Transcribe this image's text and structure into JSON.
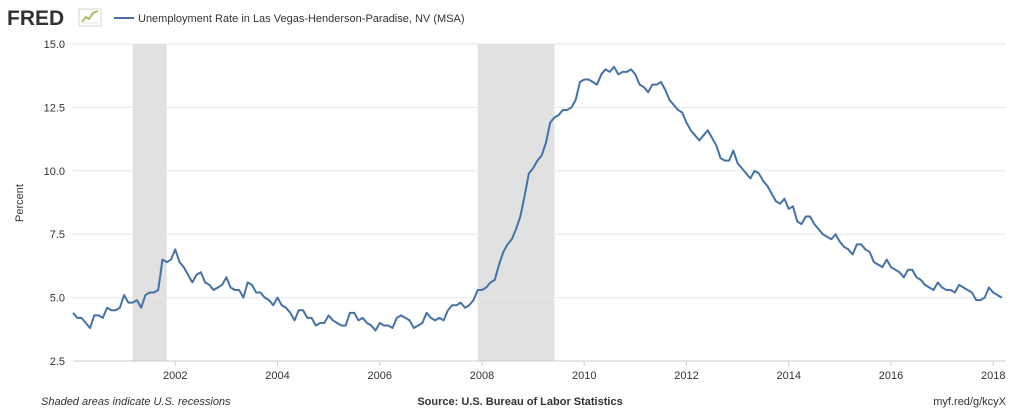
{
  "brand": {
    "logo": "FRED",
    "icon": "line-chart-icon"
  },
  "footer": {
    "note": "Shaded areas indicate U.S. recessions",
    "source": "Source: U.S. Bureau of Labor Statistics",
    "link": "myf.red/g/kcyX"
  },
  "colors": {
    "line": "#4572a7",
    "recession": "#e1e1e1",
    "grid": "#e6e6e6",
    "logo_accent": "#9bbf5e"
  },
  "chart_data": {
    "type": "line",
    "title": "",
    "xlabel": "",
    "ylabel": "Percent",
    "xlim": [
      "2000-01",
      "2018-04"
    ],
    "ylim": [
      2.5,
      15.0
    ],
    "y_ticks": [
      "2.5",
      "5.0",
      "7.5",
      "10.0",
      "12.5",
      "15.0"
    ],
    "x_ticks": [
      "2002",
      "2004",
      "2006",
      "2008",
      "2010",
      "2012",
      "2014",
      "2016",
      "2018"
    ],
    "grid": true,
    "legend_position": "top-left",
    "recessions": [
      [
        "2001-03",
        "2001-11"
      ],
      [
        "2007-12",
        "2009-06"
      ]
    ],
    "series": [
      {
        "name": "Unemployment Rate in Las Vegas-Henderson-Paradise, NV (MSA)",
        "points": [
          [
            "2000-01",
            4.4
          ],
          [
            "2000-02",
            4.2
          ],
          [
            "2000-03",
            4.2
          ],
          [
            "2000-04",
            4.0
          ],
          [
            "2000-05",
            3.8
          ],
          [
            "2000-06",
            4.3
          ],
          [
            "2000-07",
            4.3
          ],
          [
            "2000-08",
            4.2
          ],
          [
            "2000-09",
            4.6
          ],
          [
            "2000-10",
            4.5
          ],
          [
            "2000-11",
            4.5
          ],
          [
            "2000-12",
            4.6
          ],
          [
            "2001-01",
            5.1
          ],
          [
            "2001-02",
            4.8
          ],
          [
            "2001-03",
            4.8
          ],
          [
            "2001-04",
            4.9
          ],
          [
            "2001-05",
            4.6
          ],
          [
            "2001-06",
            5.1
          ],
          [
            "2001-07",
            5.2
          ],
          [
            "2001-08",
            5.2
          ],
          [
            "2001-09",
            5.3
          ],
          [
            "2001-10",
            6.5
          ],
          [
            "2001-11",
            6.4
          ],
          [
            "2001-12",
            6.5
          ],
          [
            "2002-01",
            6.9
          ],
          [
            "2002-02",
            6.4
          ],
          [
            "2002-03",
            6.2
          ],
          [
            "2002-04",
            5.9
          ],
          [
            "2002-05",
            5.6
          ],
          [
            "2002-06",
            5.9
          ],
          [
            "2002-07",
            6.0
          ],
          [
            "2002-08",
            5.6
          ],
          [
            "2002-09",
            5.5
          ],
          [
            "2002-10",
            5.3
          ],
          [
            "2002-11",
            5.4
          ],
          [
            "2002-12",
            5.5
          ],
          [
            "2003-01",
            5.8
          ],
          [
            "2003-02",
            5.4
          ],
          [
            "2003-03",
            5.3
          ],
          [
            "2003-04",
            5.3
          ],
          [
            "2003-05",
            5.0
          ],
          [
            "2003-06",
            5.6
          ],
          [
            "2003-07",
            5.5
          ],
          [
            "2003-08",
            5.2
          ],
          [
            "2003-09",
            5.2
          ],
          [
            "2003-10",
            5.0
          ],
          [
            "2003-11",
            4.9
          ],
          [
            "2003-12",
            4.7
          ],
          [
            "2004-01",
            5.0
          ],
          [
            "2004-02",
            4.7
          ],
          [
            "2004-03",
            4.6
          ],
          [
            "2004-04",
            4.4
          ],
          [
            "2004-05",
            4.1
          ],
          [
            "2004-06",
            4.5
          ],
          [
            "2004-07",
            4.5
          ],
          [
            "2004-08",
            4.2
          ],
          [
            "2004-09",
            4.2
          ],
          [
            "2004-10",
            3.9
          ],
          [
            "2004-11",
            4.0
          ],
          [
            "2004-12",
            4.0
          ],
          [
            "2005-01",
            4.3
          ],
          [
            "2005-02",
            4.1
          ],
          [
            "2005-03",
            4.0
          ],
          [
            "2005-04",
            3.9
          ],
          [
            "2005-05",
            3.9
          ],
          [
            "2005-06",
            4.4
          ],
          [
            "2005-07",
            4.4
          ],
          [
            "2005-08",
            4.1
          ],
          [
            "2005-09",
            4.2
          ],
          [
            "2005-10",
            4.0
          ],
          [
            "2005-11",
            3.9
          ],
          [
            "2005-12",
            3.7
          ],
          [
            "2006-01",
            4.0
          ],
          [
            "2006-02",
            3.9
          ],
          [
            "2006-03",
            3.9
          ],
          [
            "2006-04",
            3.8
          ],
          [
            "2006-05",
            4.2
          ],
          [
            "2006-06",
            4.3
          ],
          [
            "2006-07",
            4.2
          ],
          [
            "2006-08",
            4.1
          ],
          [
            "2006-09",
            3.8
          ],
          [
            "2006-10",
            3.9
          ],
          [
            "2006-11",
            4.0
          ],
          [
            "2006-12",
            4.4
          ],
          [
            "2007-01",
            4.2
          ],
          [
            "2007-02",
            4.1
          ],
          [
            "2007-03",
            4.2
          ],
          [
            "2007-04",
            4.1
          ],
          [
            "2007-05",
            4.5
          ],
          [
            "2007-06",
            4.7
          ],
          [
            "2007-07",
            4.7
          ],
          [
            "2007-08",
            4.8
          ],
          [
            "2007-09",
            4.6
          ],
          [
            "2007-10",
            4.7
          ],
          [
            "2007-11",
            4.9
          ],
          [
            "2007-12",
            5.3
          ],
          [
            "2008-01",
            5.3
          ],
          [
            "2008-02",
            5.4
          ],
          [
            "2008-03",
            5.6
          ],
          [
            "2008-04",
            5.7
          ],
          [
            "2008-05",
            6.3
          ],
          [
            "2008-06",
            6.8
          ],
          [
            "2008-07",
            7.1
          ],
          [
            "2008-08",
            7.3
          ],
          [
            "2008-09",
            7.7
          ],
          [
            "2008-10",
            8.2
          ],
          [
            "2008-11",
            9.0
          ],
          [
            "2008-12",
            9.9
          ],
          [
            "2009-01",
            10.1
          ],
          [
            "2009-02",
            10.4
          ],
          [
            "2009-03",
            10.6
          ],
          [
            "2009-04",
            11.1
          ],
          [
            "2009-05",
            11.9
          ],
          [
            "2009-06",
            12.1
          ],
          [
            "2009-07",
            12.2
          ],
          [
            "2009-08",
            12.4
          ],
          [
            "2009-09",
            12.4
          ],
          [
            "2009-10",
            12.5
          ],
          [
            "2009-11",
            12.8
          ],
          [
            "2009-12",
            13.5
          ],
          [
            "2010-01",
            13.6
          ],
          [
            "2010-02",
            13.6
          ],
          [
            "2010-03",
            13.5
          ],
          [
            "2010-04",
            13.4
          ],
          [
            "2010-05",
            13.8
          ],
          [
            "2010-06",
            14.0
          ],
          [
            "2010-07",
            13.9
          ],
          [
            "2010-08",
            14.1
          ],
          [
            "2010-09",
            13.8
          ],
          [
            "2010-10",
            13.9
          ],
          [
            "2010-11",
            13.9
          ],
          [
            "2010-12",
            14.0
          ],
          [
            "2011-01",
            13.8
          ],
          [
            "2011-02",
            13.4
          ],
          [
            "2011-03",
            13.3
          ],
          [
            "2011-04",
            13.1
          ],
          [
            "2011-05",
            13.4
          ],
          [
            "2011-06",
            13.4
          ],
          [
            "2011-07",
            13.5
          ],
          [
            "2011-08",
            13.2
          ],
          [
            "2011-09",
            12.8
          ],
          [
            "2011-10",
            12.6
          ],
          [
            "2011-11",
            12.4
          ],
          [
            "2011-12",
            12.3
          ],
          [
            "2012-01",
            11.9
          ],
          [
            "2012-02",
            11.6
          ],
          [
            "2012-03",
            11.4
          ],
          [
            "2012-04",
            11.2
          ],
          [
            "2012-05",
            11.4
          ],
          [
            "2012-06",
            11.6
          ],
          [
            "2012-07",
            11.3
          ],
          [
            "2012-08",
            11.0
          ],
          [
            "2012-09",
            10.5
          ],
          [
            "2012-10",
            10.4
          ],
          [
            "2012-11",
            10.4
          ],
          [
            "2012-12",
            10.8
          ],
          [
            "2013-01",
            10.3
          ],
          [
            "2013-02",
            10.1
          ],
          [
            "2013-03",
            9.9
          ],
          [
            "2013-04",
            9.7
          ],
          [
            "2013-05",
            10.0
          ],
          [
            "2013-06",
            9.9
          ],
          [
            "2013-07",
            9.6
          ],
          [
            "2013-08",
            9.4
          ],
          [
            "2013-09",
            9.1
          ],
          [
            "2013-10",
            8.8
          ],
          [
            "2013-11",
            8.7
          ],
          [
            "2013-12",
            8.9
          ],
          [
            "2014-01",
            8.5
          ],
          [
            "2014-02",
            8.6
          ],
          [
            "2014-03",
            8.0
          ],
          [
            "2014-04",
            7.9
          ],
          [
            "2014-05",
            8.2
          ],
          [
            "2014-06",
            8.2
          ],
          [
            "2014-07",
            7.9
          ],
          [
            "2014-08",
            7.7
          ],
          [
            "2014-09",
            7.5
          ],
          [
            "2014-10",
            7.4
          ],
          [
            "2014-11",
            7.3
          ],
          [
            "2014-12",
            7.5
          ],
          [
            "2015-01",
            7.2
          ],
          [
            "2015-02",
            7.0
          ],
          [
            "2015-03",
            6.9
          ],
          [
            "2015-04",
            6.7
          ],
          [
            "2015-05",
            7.1
          ],
          [
            "2015-06",
            7.1
          ],
          [
            "2015-07",
            6.9
          ],
          [
            "2015-08",
            6.8
          ],
          [
            "2015-09",
            6.4
          ],
          [
            "2015-10",
            6.3
          ],
          [
            "2015-11",
            6.2
          ],
          [
            "2015-12",
            6.5
          ],
          [
            "2016-01",
            6.2
          ],
          [
            "2016-02",
            6.1
          ],
          [
            "2016-03",
            6.0
          ],
          [
            "2016-04",
            5.8
          ],
          [
            "2016-05",
            6.1
          ],
          [
            "2016-06",
            6.1
          ],
          [
            "2016-07",
            5.8
          ],
          [
            "2016-08",
            5.7
          ],
          [
            "2016-09",
            5.5
          ],
          [
            "2016-10",
            5.4
          ],
          [
            "2016-11",
            5.3
          ],
          [
            "2016-12",
            5.6
          ],
          [
            "2017-01",
            5.4
          ],
          [
            "2017-02",
            5.3
          ],
          [
            "2017-03",
            5.3
          ],
          [
            "2017-04",
            5.2
          ],
          [
            "2017-05",
            5.5
          ],
          [
            "2017-06",
            5.4
          ],
          [
            "2017-07",
            5.3
          ],
          [
            "2017-08",
            5.2
          ],
          [
            "2017-09",
            4.9
          ],
          [
            "2017-10",
            4.9
          ],
          [
            "2017-11",
            5.0
          ],
          [
            "2017-12",
            5.4
          ],
          [
            "2018-01",
            5.2
          ],
          [
            "2018-02",
            5.1
          ],
          [
            "2018-03",
            5.0
          ]
        ]
      }
    ]
  }
}
